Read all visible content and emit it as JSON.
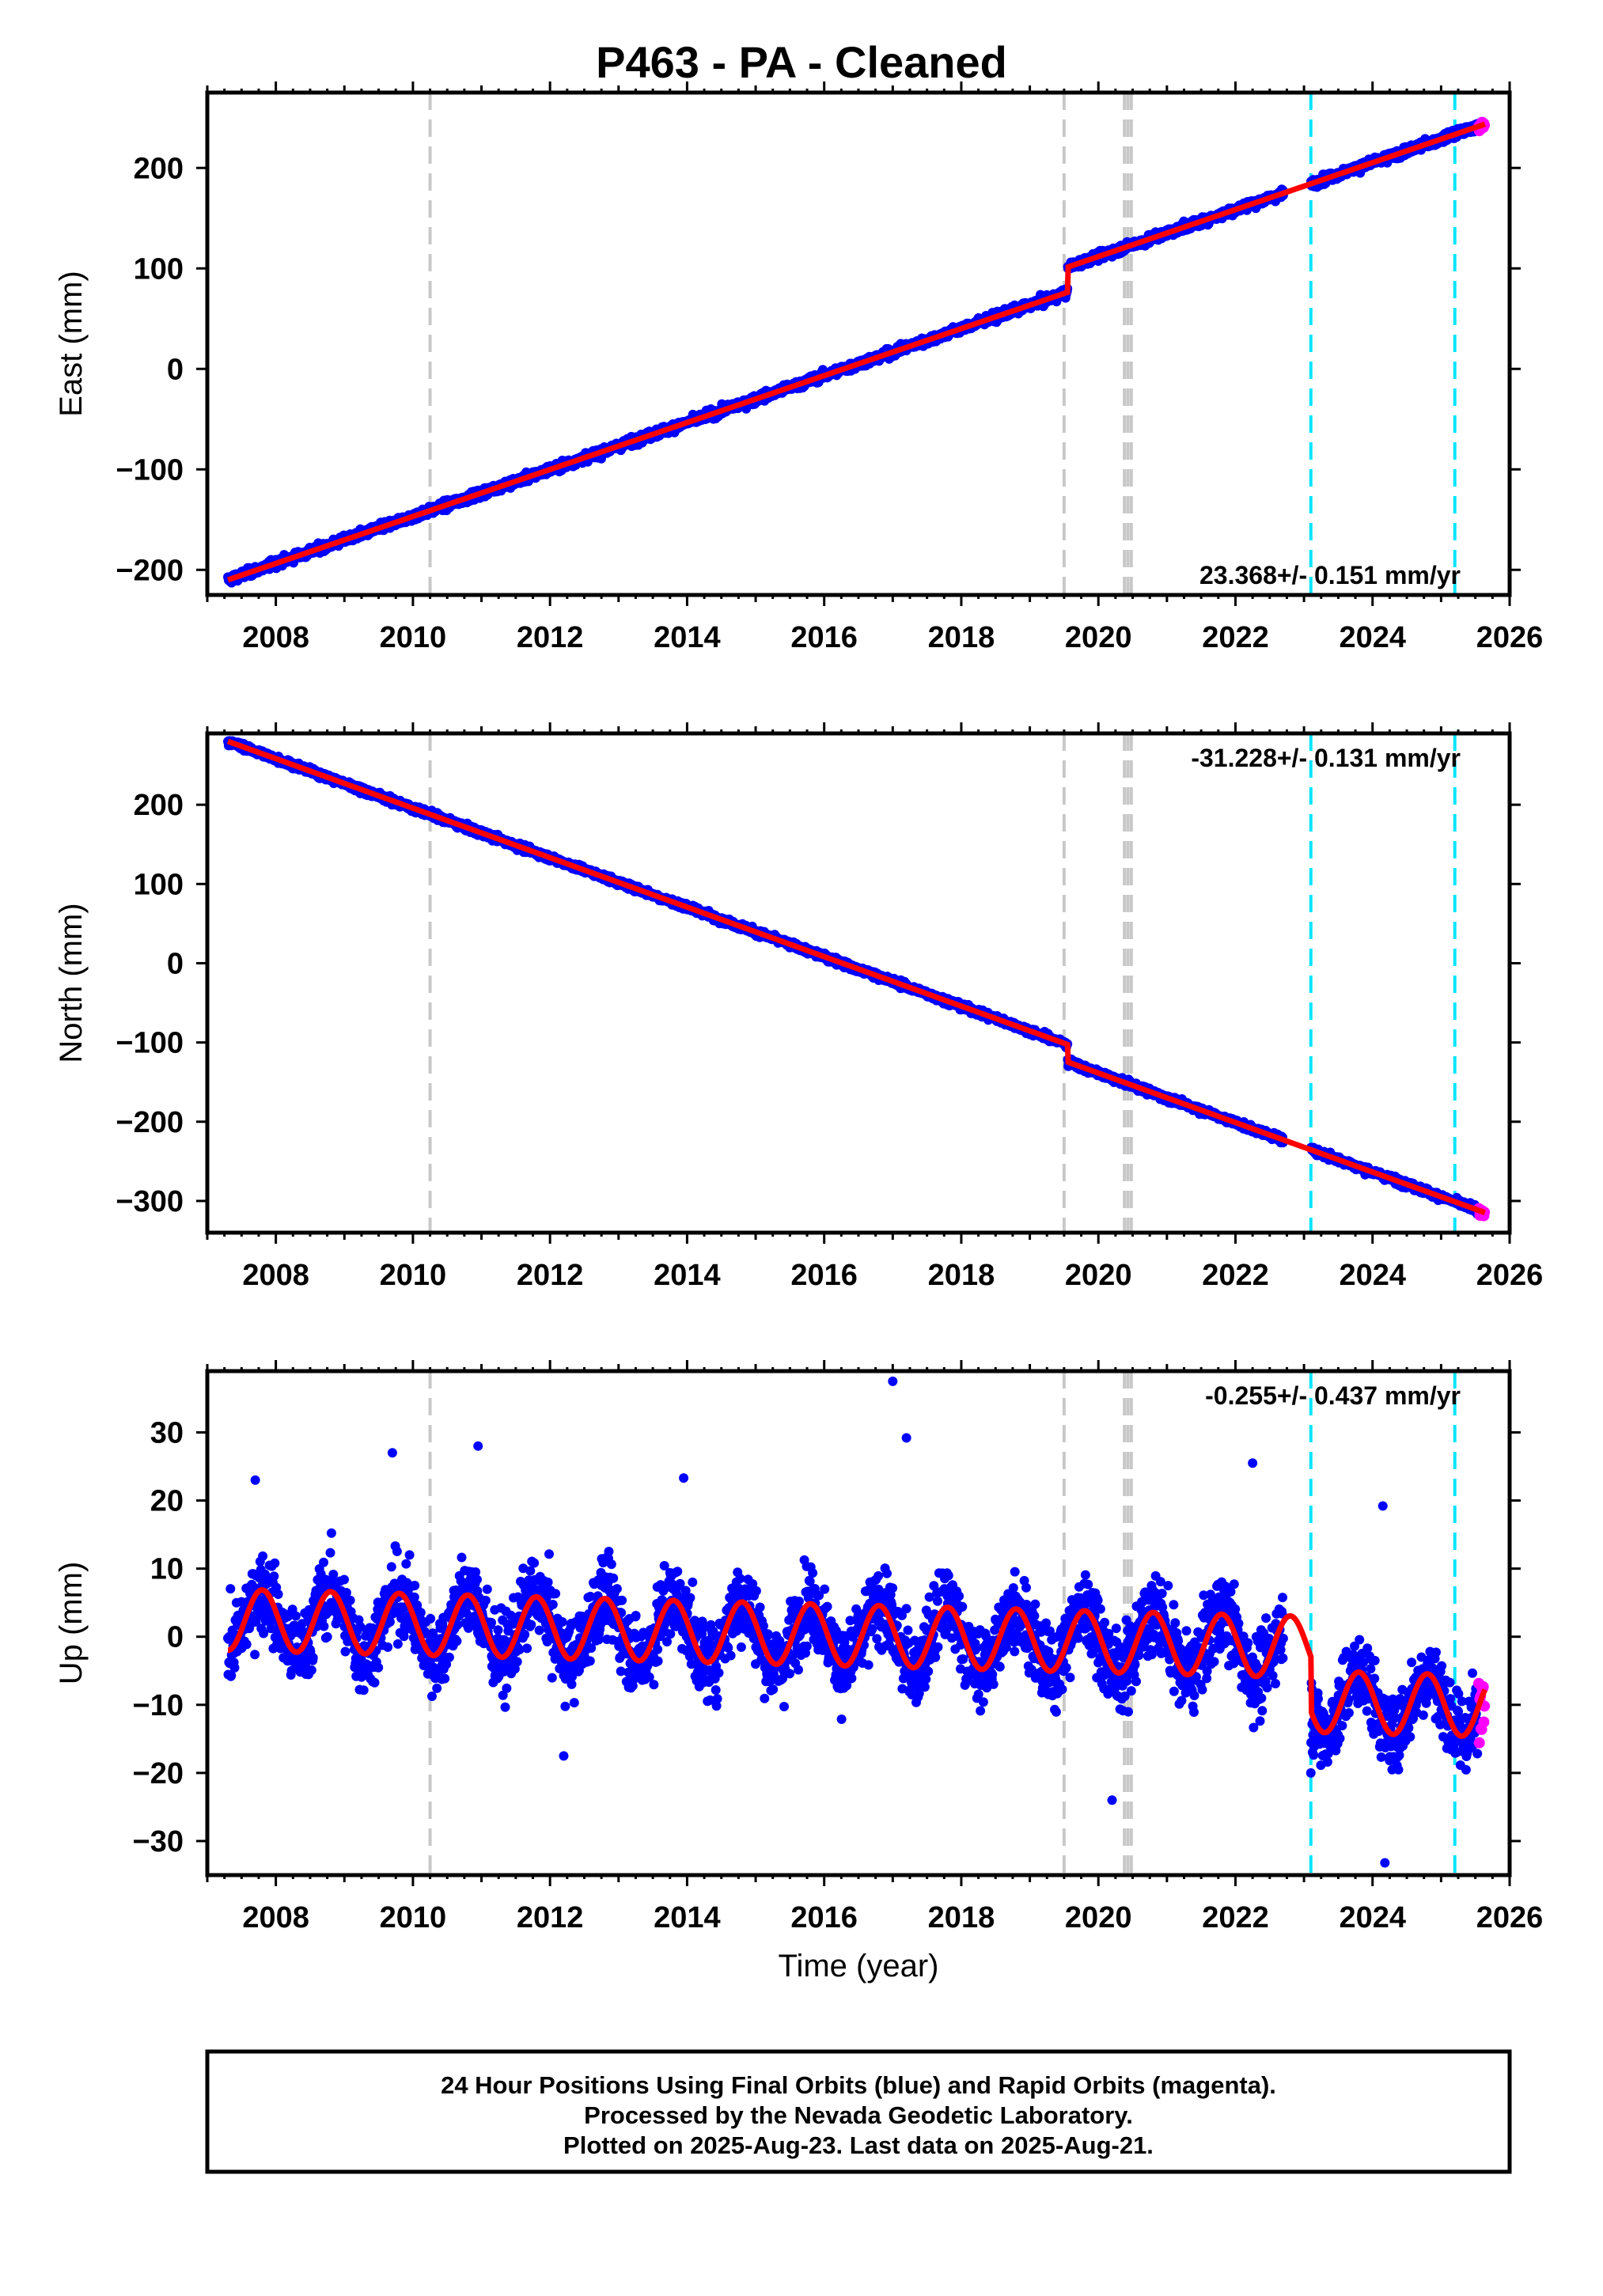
{
  "title": "P463  - PA - Cleaned",
  "colors": {
    "final_orbits": "#0000ff",
    "rapid_orbits": "#ff00ff",
    "model": "#ff0000",
    "equipment_change": "#c8c8c8",
    "earthquake": "#00e5ff",
    "frame": "#000000"
  },
  "caption": {
    "line1": "24 Hour Positions Using Final Orbits (blue) and Rapid Orbits (magenta).",
    "line2": "Processed by the Nevada Geodetic Laboratory.",
    "line3": "Plotted on 2025-Aug-23. Last data on 2025-Aug-21."
  },
  "chart_data": [
    {
      "type": "scatter",
      "component": "East",
      "ylabel": "East (mm)",
      "xlabel": "",
      "xlim": [
        2007.0,
        2026.0
      ],
      "ylim": [
        -225,
        275
      ],
      "xticks": [
        2008,
        2010,
        2012,
        2014,
        2016,
        2018,
        2020,
        2022,
        2024,
        2026
      ],
      "yticks": [
        -200,
        -100,
        0,
        100,
        200
      ],
      "ytick_labels": [
        "−200",
        "−100",
        "0",
        "100",
        "200"
      ],
      "rate_label": "23.368+/- 0.151 mm/yr",
      "rate_position": "bottom-right",
      "data_start": 2007.3,
      "rapid_start": 2025.55,
      "data_end": 2025.64,
      "data_gap": [
        2022.7,
        2023.1
      ],
      "model": {
        "a": -210,
        "b": 23.368,
        "t0": 2007.3,
        "offsets": [
          {
            "t": 2019.55,
            "dy": 25
          }
        ],
        "season_amp": 0
      },
      "noise_mm": 3,
      "equipment_changes": [
        2010.25,
        2019.5,
        2020.38,
        2020.43,
        2020.48
      ],
      "earthquakes": [
        2023.1,
        2025.2
      ]
    },
    {
      "type": "scatter",
      "component": "North",
      "ylabel": "North (mm)",
      "xlabel": "",
      "xlim": [
        2007.0,
        2026.0
      ],
      "ylim": [
        -340,
        290
      ],
      "xticks": [
        2008,
        2010,
        2012,
        2014,
        2016,
        2018,
        2020,
        2022,
        2024,
        2026
      ],
      "yticks": [
        -300,
        -200,
        -100,
        0,
        100,
        200
      ],
      "ytick_labels": [
        "−300",
        "−200",
        "−100",
        "0",
        "100",
        "200"
      ],
      "rate_label": "-31.228+/- 0.131 mm/yr",
      "rate_position": "top-right",
      "data_start": 2007.3,
      "rapid_start": 2025.55,
      "data_end": 2025.64,
      "data_gap": [
        2022.7,
        2023.1
      ],
      "model": {
        "a": 280,
        "b": -31.228,
        "t0": 2007.3,
        "offsets": [
          {
            "t": 2019.55,
            "dy": -22
          }
        ],
        "season_amp": 0
      },
      "noise_mm": 3,
      "equipment_changes": [
        2010.25,
        2019.5,
        2020.38,
        2020.43,
        2020.48
      ],
      "earthquakes": [
        2023.1,
        2025.2
      ]
    },
    {
      "type": "scatter",
      "component": "Up",
      "ylabel": "Up (mm)",
      "xlabel": "Time (year)",
      "xlim": [
        2007.0,
        2026.0
      ],
      "ylim": [
        -35,
        39
      ],
      "xticks": [
        2008,
        2010,
        2012,
        2014,
        2016,
        2018,
        2020,
        2022,
        2024,
        2026
      ],
      "yticks": [
        -30,
        -20,
        -10,
        0,
        10,
        20,
        30
      ],
      "ytick_labels": [
        "−30",
        "−20",
        "−10",
        "0",
        "10",
        "20",
        "30"
      ],
      "rate_label": "-0.255+/- 0.437 mm/yr",
      "rate_position": "top-right",
      "data_start": 2007.3,
      "rapid_start": 2025.55,
      "data_end": 2025.64,
      "data_gap": [
        2022.7,
        2023.1
      ],
      "model": {
        "a": 2.5,
        "b": -0.255,
        "t0": 2007.3,
        "offsets": [
          {
            "t": 2023.1,
            "dy": -8
          }
        ],
        "season_amp": 4.5,
        "season_phase": 0.55
      },
      "noise_mm": 4,
      "equipment_changes": [
        2010.25,
        2019.5,
        2020.38,
        2020.43,
        2020.48
      ],
      "earthquakes": [
        2023.1,
        2025.2
      ],
      "outliers": [
        {
          "x": 2017.0,
          "y": 37.5
        },
        {
          "x": 2017.2,
          "y": 29.2
        },
        {
          "x": 2010.95,
          "y": 28.0
        },
        {
          "x": 2009.7,
          "y": 27.0
        },
        {
          "x": 2022.25,
          "y": 25.5
        },
        {
          "x": 2013.95,
          "y": 23.3
        },
        {
          "x": 2007.7,
          "y": 23.0
        },
        {
          "x": 2024.15,
          "y": 19.2
        },
        {
          "x": 2012.2,
          "y": -17.5
        },
        {
          "x": 2020.2,
          "y": -24.0
        },
        {
          "x": 2024.18,
          "y": -33.2
        },
        {
          "x": 2023.1,
          "y": -20.0
        }
      ]
    }
  ]
}
